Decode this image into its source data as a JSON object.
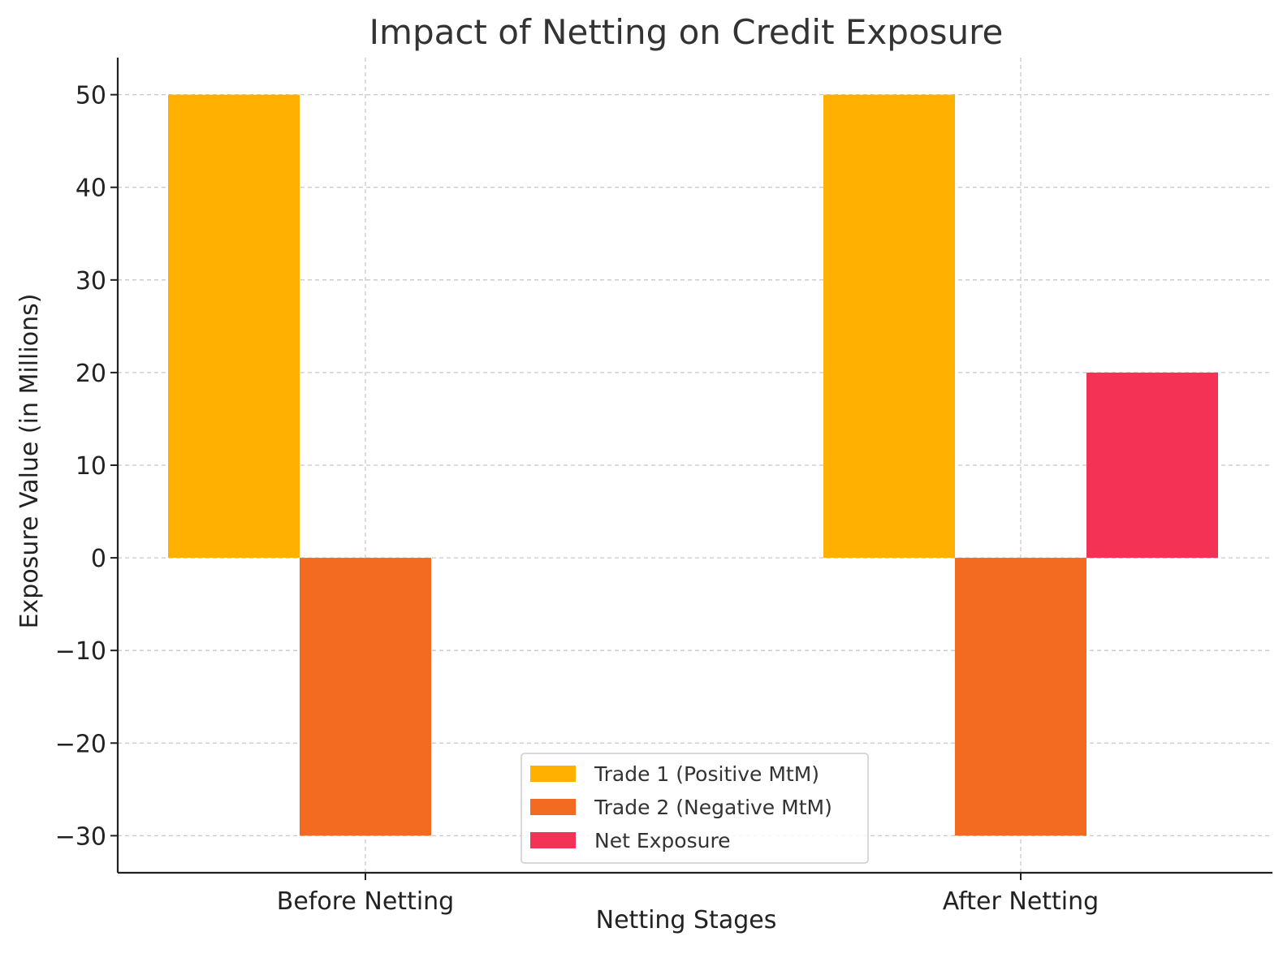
{
  "chart_data": {
    "type": "bar",
    "title": "Impact of Netting on Credit Exposure",
    "xlabel": "Netting Stages",
    "ylabel": "Exposure Value (in Millions)",
    "categories": [
      "Before Netting",
      "After Netting"
    ],
    "ylim": [
      -34,
      54
    ],
    "yticks": [
      -30,
      -20,
      -10,
      0,
      10,
      20,
      30,
      40,
      50
    ],
    "ytick_labels": [
      "−30",
      "−20",
      "−10",
      "0",
      "10",
      "20",
      "30",
      "40",
      "50"
    ],
    "grid": true,
    "legend_position": "lower center",
    "series": [
      {
        "name": "Trade 1 (Positive MtM)",
        "color": "#FFB000",
        "values": [
          50,
          50
        ]
      },
      {
        "name": "Trade 2 (Negative MtM)",
        "color": "#F26B21",
        "values": [
          -30,
          -30
        ]
      },
      {
        "name": "Net Exposure",
        "color": "#F43256",
        "values": [
          null,
          20
        ]
      }
    ]
  }
}
